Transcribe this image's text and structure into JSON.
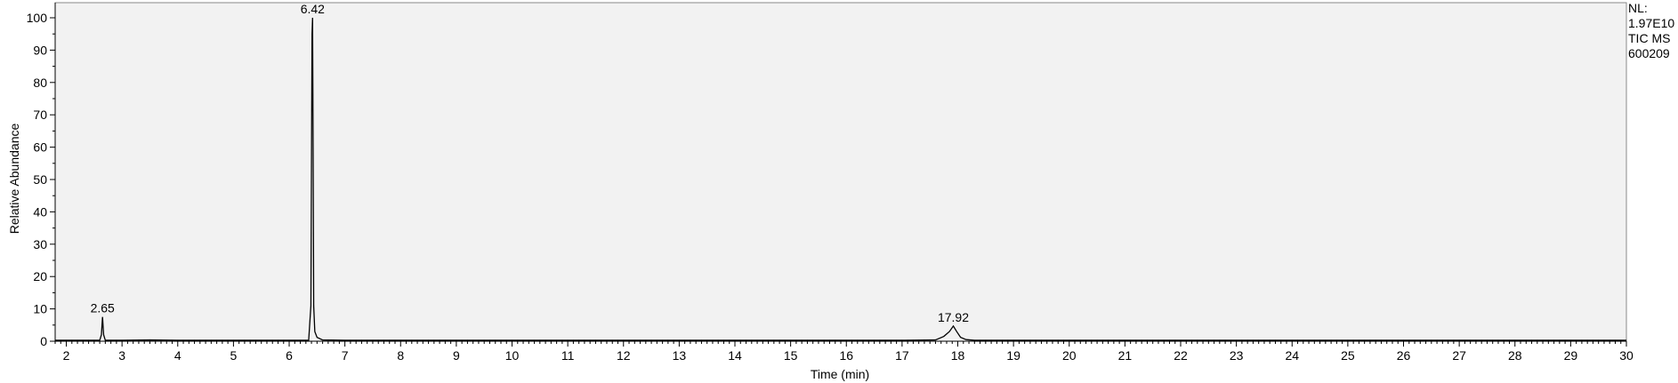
{
  "chart_data": {
    "type": "line",
    "xlabel": "Time (min)",
    "ylabel": "Relative Abundance",
    "xlim": [
      1.8,
      30
    ],
    "ylim": [
      0,
      100
    ],
    "x_ticks": [
      "2",
      "3",
      "4",
      "5",
      "6",
      "7",
      "8",
      "9",
      "10",
      "11",
      "12",
      "13",
      "14",
      "15",
      "16",
      "17",
      "18",
      "19",
      "20",
      "21",
      "22",
      "23",
      "24",
      "25",
      "26",
      "27",
      "28",
      "29",
      "30"
    ],
    "y_ticks": [
      "0",
      "10",
      "20",
      "30",
      "40",
      "50",
      "60",
      "70",
      "80",
      "90",
      "100"
    ],
    "grid": false,
    "background_color": "#f2f2f2",
    "line_color": "#000000",
    "series": [
      {
        "x": [
          1.8,
          2.6,
          2.63,
          2.65,
          2.67,
          2.7,
          3.0,
          3.5,
          4.0,
          5.0,
          6.0,
          6.35,
          6.39,
          6.41,
          6.42,
          6.43,
          6.44,
          6.46,
          6.5,
          6.6,
          7.0,
          8.0,
          10.0,
          12.0,
          14.0,
          16.0,
          17.0,
          17.6,
          17.75,
          17.85,
          17.92,
          17.98,
          18.05,
          18.15,
          18.3,
          19.0,
          21.0,
          24.0,
          27.0,
          30.0
        ],
        "y": [
          0.3,
          0.3,
          2.0,
          7.5,
          2.0,
          0.3,
          0.3,
          0.4,
          0.3,
          0.3,
          0.3,
          0.3,
          11.0,
          95.0,
          100.0,
          60.0,
          11.0,
          3.0,
          1.2,
          0.4,
          0.3,
          0.3,
          0.3,
          0.3,
          0.3,
          0.3,
          0.3,
          0.4,
          1.5,
          3.0,
          4.7,
          3.0,
          1.2,
          0.5,
          0.3,
          0.3,
          0.3,
          0.3,
          0.3,
          0.3
        ]
      }
    ],
    "peak_labels": [
      {
        "x": 2.65,
        "y": 7.5,
        "text": "2.65"
      },
      {
        "x": 6.42,
        "y": 100,
        "text": "6.42"
      },
      {
        "x": 17.92,
        "y": 4.7,
        "text": "17.92"
      }
    ],
    "info": {
      "line1": "NL:",
      "line2": "1.97E10",
      "line3": "TIC  MS",
      "line4": "600209"
    }
  }
}
